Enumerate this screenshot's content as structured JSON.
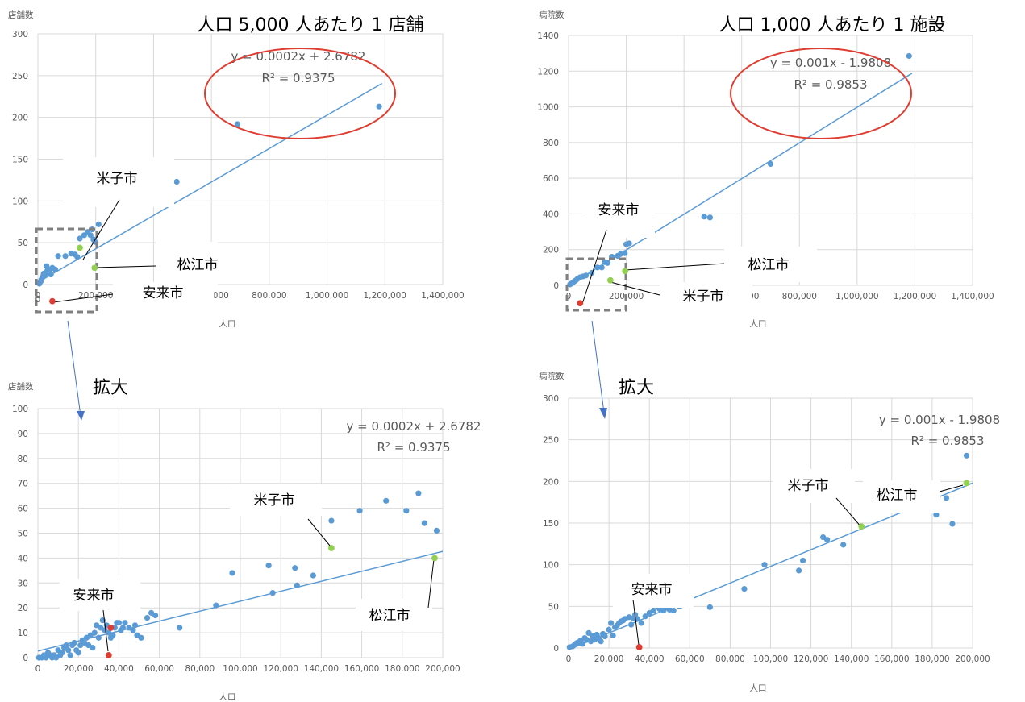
{
  "chart_data": [
    {
      "type": "scatter",
      "title": "人口 5,000 人あたり 1 店舗",
      "ylabel": "店舗数",
      "xlabel": "人口",
      "xlim": [
        0,
        1400000
      ],
      "ylim": [
        0,
        300
      ],
      "xticks": [
        "0",
        "200,000",
        "400,000",
        "600,000",
        "800,000",
        "1,000,000",
        "1,200,000",
        "1,400,000"
      ],
      "yticks": [
        "0",
        "50",
        "100",
        "150",
        "200",
        "250",
        "300"
      ],
      "equation": "y = 0.0002x + 2.6782",
      "r2": "R² = 0.9375",
      "trend": {
        "slope": 0.0002,
        "intercept": 2.6782,
        "xmax": 1190000
      },
      "points": [
        [
          5000,
          1
        ],
        [
          8000,
          3
        ],
        [
          10000,
          4
        ],
        [
          12000,
          6
        ],
        [
          15000,
          8
        ],
        [
          18000,
          10
        ],
        [
          20000,
          13
        ],
        [
          25000,
          12
        ],
        [
          28000,
          15
        ],
        [
          30000,
          22
        ],
        [
          35000,
          18
        ],
        [
          40000,
          15
        ],
        [
          45000,
          12
        ],
        [
          50000,
          20
        ],
        [
          60000,
          18
        ],
        [
          70000,
          34
        ],
        [
          95000,
          34
        ],
        [
          115000,
          37
        ],
        [
          128000,
          36
        ],
        [
          136000,
          33
        ],
        [
          145000,
          55
        ],
        [
          160000,
          59
        ],
        [
          172000,
          63
        ],
        [
          182000,
          59
        ],
        [
          188000,
          66
        ],
        [
          192000,
          54
        ],
        [
          198000,
          51
        ],
        [
          210000,
          72
        ],
        [
          480000,
          123
        ],
        [
          690000,
          192
        ],
        [
          1180000,
          213
        ]
      ],
      "highlight": [
        {
          "x": 145000,
          "y": 44,
          "color": "#92d050"
        },
        {
          "x": 196000,
          "y": 20,
          "color": "#92d050"
        },
        {
          "x": 50000,
          "y": -20,
          "color": "#e03c31"
        }
      ],
      "callouts": [
        "米子市",
        "松江市",
        "安来市"
      ],
      "ytick_zero_extra": "0"
    },
    {
      "type": "scatter",
      "title": "人口 1,000 人あたり 1 施設",
      "ylabel": "病院数",
      "xlabel": "人口",
      "xlim": [
        0,
        1400000
      ],
      "ylim": [
        0,
        1400
      ],
      "xticks": [
        "0",
        "200,000",
        "400,000",
        "600,000",
        "800,000",
        "1,000,000",
        "1,200,000",
        "1,400,000"
      ],
      "yticks": [
        "0",
        "200",
        "400",
        "600",
        "800",
        "1000",
        "1200",
        "1400"
      ],
      "equation": "y = 0.001x - 1.9808",
      "r2": "R² = 0.9853",
      "trend": {
        "slope": 0.001,
        "intercept": -1.9808,
        "xmax": 1190000
      },
      "points": [
        [
          5000,
          5
        ],
        [
          10000,
          10
        ],
        [
          15000,
          15
        ],
        [
          20000,
          22
        ],
        [
          25000,
          28
        ],
        [
          30000,
          35
        ],
        [
          40000,
          45
        ],
        [
          50000,
          50
        ],
        [
          60000,
          55
        ],
        [
          80000,
          70
        ],
        [
          100000,
          100
        ],
        [
          115000,
          100
        ],
        [
          125000,
          130
        ],
        [
          135000,
          125
        ],
        [
          150000,
          160
        ],
        [
          170000,
          165
        ],
        [
          180000,
          175
        ],
        [
          195000,
          180
        ],
        [
          200000,
          230
        ],
        [
          210000,
          235
        ],
        [
          250000,
          285
        ],
        [
          470000,
          385
        ],
        [
          490000,
          380
        ],
        [
          700000,
          680
        ],
        [
          1180000,
          1285
        ]
      ],
      "highlight": [
        {
          "x": 196000,
          "y": 80,
          "color": "#92d050"
        },
        {
          "x": 145000,
          "y": 28,
          "color": "#92d050"
        },
        {
          "x": 40000,
          "y": -100,
          "color": "#e03c31"
        }
      ],
      "callouts": [
        "安来市",
        "松江市",
        "米子市"
      ]
    },
    {
      "type": "scatter",
      "title": "",
      "ylabel": "店舗数",
      "xlabel": "人口",
      "xlim": [
        0,
        200000
      ],
      "ylim": [
        0,
        100
      ],
      "xticks": [
        "0",
        "20,000",
        "40,000",
        "60,000",
        "80,000",
        "100,000",
        "120,000",
        "140,000",
        "160,000",
        "180,000",
        "200,000"
      ],
      "yticks": [
        "0",
        "10",
        "20",
        "30",
        "40",
        "50",
        "60",
        "70",
        "80",
        "90",
        "100"
      ],
      "equation": "y = 0.0002x + 2.6782",
      "r2": "R² = 0.9375",
      "trend": {
        "slope": 0.0002,
        "intercept": 2.6782,
        "xmax": 200000
      },
      "points": [
        [
          500,
          0
        ],
        [
          2000,
          0
        ],
        [
          3000,
          1
        ],
        [
          4000,
          0
        ],
        [
          5000,
          2
        ],
        [
          6000,
          1
        ],
        [
          7000,
          0
        ],
        [
          8000,
          1
        ],
        [
          9000,
          0
        ],
        [
          10000,
          3
        ],
        [
          11000,
          1
        ],
        [
          12000,
          2
        ],
        [
          13000,
          4
        ],
        [
          14000,
          5
        ],
        [
          15000,
          3
        ],
        [
          16000,
          1
        ],
        [
          17000,
          5
        ],
        [
          18000,
          6
        ],
        [
          19000,
          3
        ],
        [
          20000,
          2
        ],
        [
          21000,
          5
        ],
        [
          22000,
          7
        ],
        [
          23000,
          6
        ],
        [
          24000,
          8
        ],
        [
          25000,
          5
        ],
        [
          26000,
          9
        ],
        [
          27000,
          4
        ],
        [
          28000,
          10
        ],
        [
          29000,
          13
        ],
        [
          30000,
          8
        ],
        [
          31000,
          12
        ],
        [
          32000,
          15
        ],
        [
          33000,
          11
        ],
        [
          34000,
          13
        ],
        [
          35000,
          10
        ],
        [
          36000,
          8
        ],
        [
          37000,
          9
        ],
        [
          38000,
          12
        ],
        [
          39000,
          14
        ],
        [
          40000,
          14
        ],
        [
          41000,
          11
        ],
        [
          42000,
          12
        ],
        [
          43000,
          14
        ],
        [
          45000,
          12
        ],
        [
          47000,
          11
        ],
        [
          48000,
          13
        ],
        [
          49000,
          9
        ],
        [
          51000,
          8
        ],
        [
          54000,
          16
        ],
        [
          56000,
          18
        ],
        [
          58000,
          17
        ],
        [
          70000,
          12
        ],
        [
          88000,
          21
        ],
        [
          96000,
          34
        ],
        [
          114000,
          37
        ],
        [
          116000,
          26
        ],
        [
          127000,
          36
        ],
        [
          128000,
          29
        ],
        [
          136000,
          33
        ],
        [
          145000,
          55
        ],
        [
          159000,
          59
        ],
        [
          172000,
          63
        ],
        [
          182000,
          59
        ],
        [
          188000,
          66
        ],
        [
          191000,
          54
        ],
        [
          197000,
          51
        ]
      ],
      "highlight": [
        {
          "x": 145000,
          "y": 44,
          "color": "#92d050"
        },
        {
          "x": 196000,
          "y": 40,
          "color": "#92d050"
        },
        {
          "x": 35000,
          "y": 1,
          "color": "#e03c31"
        },
        {
          "x": 36000,
          "y": 12,
          "color": "#e03c31"
        }
      ],
      "callouts": [
        "米子市",
        "安来市",
        "松江市"
      ],
      "zoom_label": "拡大"
    },
    {
      "type": "scatter",
      "title": "",
      "ylabel": "病院数",
      "xlabel": "人口",
      "xlim": [
        0,
        200000
      ],
      "ylim": [
        0,
        300
      ],
      "xticks": [
        "0",
        "20,000",
        "40,000",
        "60,000",
        "80,000",
        "100,000",
        "120,000",
        "140,000",
        "160,000",
        "180,000",
        "200,000"
      ],
      "yticks": [
        "0",
        "50",
        "100",
        "150",
        "200",
        "250",
        "300"
      ],
      "equation": "y = 0.001x - 1.9808",
      "r2": "R² = 0.9853",
      "trend": {
        "slope": 0.001,
        "intercept": -1.9808,
        "xmax": 200000
      },
      "points": [
        [
          500,
          1
        ],
        [
          2000,
          2
        ],
        [
          3000,
          4
        ],
        [
          4000,
          6
        ],
        [
          5000,
          7
        ],
        [
          6000,
          9
        ],
        [
          7000,
          5
        ],
        [
          8000,
          12
        ],
        [
          9000,
          10
        ],
        [
          10000,
          18
        ],
        [
          11000,
          8
        ],
        [
          12000,
          14
        ],
        [
          13000,
          10
        ],
        [
          14000,
          16
        ],
        [
          15000,
          12
        ],
        [
          16000,
          8
        ],
        [
          17000,
          17
        ],
        [
          18000,
          14
        ],
        [
          20000,
          22
        ],
        [
          21000,
          30
        ],
        [
          22000,
          15
        ],
        [
          23000,
          25
        ],
        [
          24000,
          27
        ],
        [
          25000,
          30
        ],
        [
          26000,
          32
        ],
        [
          27000,
          33
        ],
        [
          28000,
          35
        ],
        [
          30000,
          37
        ],
        [
          31000,
          28
        ],
        [
          32000,
          36
        ],
        [
          33000,
          40
        ],
        [
          34000,
          35
        ],
        [
          36000,
          30
        ],
        [
          38000,
          38
        ],
        [
          40000,
          42
        ],
        [
          42000,
          45
        ],
        [
          44000,
          50
        ],
        [
          45000,
          47
        ],
        [
          47000,
          45
        ],
        [
          48000,
          48
        ],
        [
          50000,
          46
        ],
        [
          52000,
          45
        ],
        [
          55000,
          50
        ],
        [
          70000,
          49
        ],
        [
          87000,
          71
        ],
        [
          97000,
          100
        ],
        [
          114000,
          93
        ],
        [
          116000,
          105
        ],
        [
          126000,
          133
        ],
        [
          128000,
          130
        ],
        [
          136000,
          124
        ],
        [
          182000,
          160
        ],
        [
          187000,
          180
        ],
        [
          190000,
          149
        ],
        [
          197000,
          231
        ]
      ],
      "highlight": [
        {
          "x": 145000,
          "y": 146,
          "color": "#92d050"
        },
        {
          "x": 197000,
          "y": 198,
          "color": "#92d050"
        },
        {
          "x": 35000,
          "y": 1,
          "color": "#e03c31"
        }
      ],
      "callouts": [
        "米子市",
        "松江市",
        "安来市"
      ],
      "zoom_label": "拡大"
    }
  ]
}
